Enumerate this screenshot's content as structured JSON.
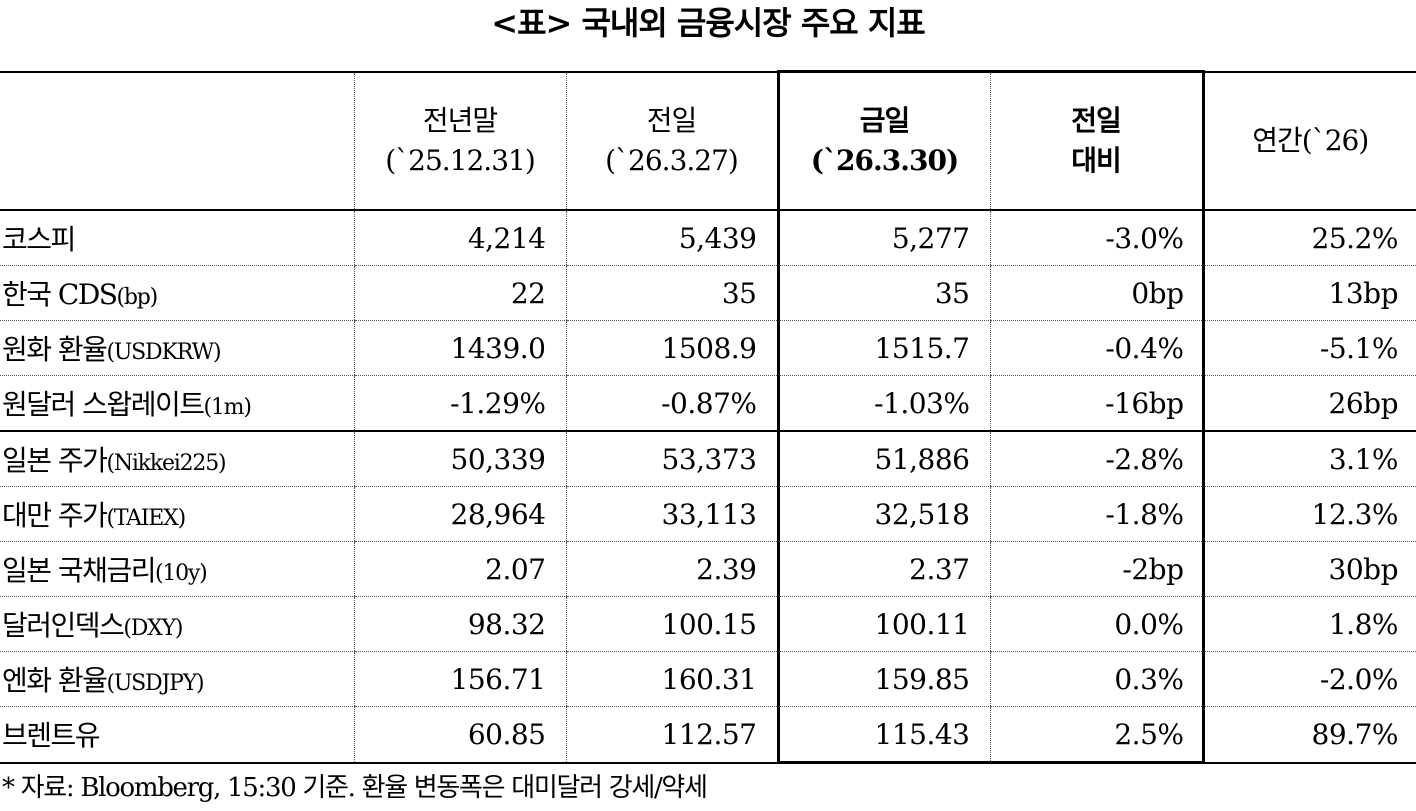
{
  "title": "<표> 국내외 금융시장 주요 지표",
  "columns": {
    "prev_year_end": {
      "line1": "전년말",
      "line2": "(`25.12.31)"
    },
    "prev_day": {
      "line1": "전일",
      "line2": "(`26.3.27)"
    },
    "today": {
      "line1": "금일",
      "line2": "(`26.3.30)"
    },
    "day_change": {
      "line1": "전일",
      "line2": "대비"
    },
    "ytd": {
      "line1": "연간(`26)"
    }
  },
  "rows": [
    {
      "name": "코스피",
      "unit": "",
      "prev_year_end": "4,214",
      "prev_day": "5,439",
      "today": "5,277",
      "day_change": "-3.0%",
      "ytd": "25.2%"
    },
    {
      "name": "한국 CDS",
      "unit": "(bp)",
      "prev_year_end": "22",
      "prev_day": "35",
      "today": "35",
      "day_change": "0bp",
      "ytd": "13bp"
    },
    {
      "name": "원화 환율",
      "unit": "(USDKRW)",
      "prev_year_end": "1439.0",
      "prev_day": "1508.9",
      "today": "1515.7",
      "day_change": "-0.4%",
      "ytd": "-5.1%"
    },
    {
      "name": "원달러 스왑레이트",
      "unit": "(1m)",
      "prev_year_end": "-1.29%",
      "prev_day": "-0.87%",
      "today": "-1.03%",
      "day_change": "-16bp",
      "ytd": "26bp"
    },
    {
      "name": "일본 주가",
      "unit": "(Nikkei225)",
      "prev_year_end": "50,339",
      "prev_day": "53,373",
      "today": "51,886",
      "day_change": "-2.8%",
      "ytd": "3.1%"
    },
    {
      "name": "대만 주가",
      "unit": "(TAIEX)",
      "prev_year_end": "28,964",
      "prev_day": "33,113",
      "today": "32,518",
      "day_change": "-1.8%",
      "ytd": "12.3%"
    },
    {
      "name": "일본 국채금리",
      "unit": "(10y)",
      "prev_year_end": "2.07",
      "prev_day": "2.39",
      "today": "2.37",
      "day_change": "-2bp",
      "ytd": "30bp"
    },
    {
      "name": "달러인덱스",
      "unit": "(DXY)",
      "prev_year_end": "98.32",
      "prev_day": "100.15",
      "today": "100.11",
      "day_change": "0.0%",
      "ytd": "1.8%"
    },
    {
      "name": "엔화 환율",
      "unit": "(USDJPY)",
      "prev_year_end": "156.71",
      "prev_day": "160.31",
      "today": "159.85",
      "day_change": "0.3%",
      "ytd": "-2.0%"
    },
    {
      "name": "브렌트유",
      "unit": "",
      "prev_year_end": "60.85",
      "prev_day": "112.57",
      "today": "115.43",
      "day_change": "2.5%",
      "ytd": "89.7%"
    }
  ],
  "footnote": "* 자료: Bloomberg, 15:30 기준. 환율 변동폭은 대미달러 강세/약세"
}
